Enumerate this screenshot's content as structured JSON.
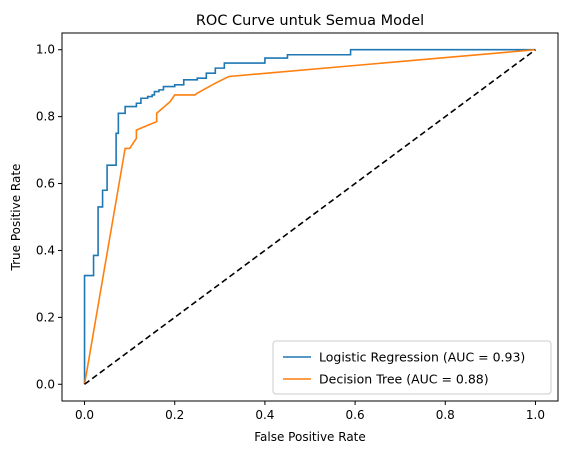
{
  "chart_data": {
    "type": "line",
    "title": "ROC Curve untuk Semua Model",
    "xlabel": "False Positive Rate",
    "ylabel": "True Positive Rate",
    "xlim": [
      -0.05,
      1.05
    ],
    "ylim": [
      -0.05,
      1.05
    ],
    "xticks": [
      "0.0",
      "0.2",
      "0.4",
      "0.6",
      "0.8",
      "1.0"
    ],
    "yticks": [
      "0.0",
      "0.2",
      "0.4",
      "0.6",
      "0.8",
      "1.0"
    ],
    "grid": false,
    "legend_position": "lower-right",
    "series": [
      {
        "name": "Logistic Regression (AUC = 0.93)",
        "color": "#1f77b4",
        "step": true,
        "x": [
          0.0,
          0.0,
          0.02,
          0.02,
          0.03,
          0.03,
          0.04,
          0.04,
          0.05,
          0.05,
          0.07,
          0.07,
          0.075,
          0.075,
          0.09,
          0.09,
          0.115,
          0.115,
          0.125,
          0.125,
          0.14,
          0.14,
          0.15,
          0.15,
          0.155,
          0.155,
          0.165,
          0.165,
          0.175,
          0.175,
          0.2,
          0.2,
          0.22,
          0.22,
          0.25,
          0.25,
          0.27,
          0.27,
          0.29,
          0.29,
          0.31,
          0.31,
          0.4,
          0.4,
          0.45,
          0.45,
          0.59,
          0.59,
          1.0
        ],
        "y": [
          0.0,
          0.325,
          0.325,
          0.385,
          0.385,
          0.53,
          0.53,
          0.58,
          0.58,
          0.655,
          0.655,
          0.75,
          0.75,
          0.81,
          0.81,
          0.83,
          0.83,
          0.84,
          0.84,
          0.855,
          0.855,
          0.86,
          0.86,
          0.865,
          0.865,
          0.875,
          0.875,
          0.88,
          0.88,
          0.89,
          0.89,
          0.895,
          0.895,
          0.91,
          0.91,
          0.915,
          0.915,
          0.93,
          0.93,
          0.945,
          0.945,
          0.96,
          0.96,
          0.975,
          0.975,
          0.985,
          0.985,
          1.0,
          1.0
        ]
      },
      {
        "name": "Decision Tree (AUC = 0.88)",
        "color": "#ff7f0e",
        "step": false,
        "x": [
          0.0,
          0.09,
          0.1,
          0.115,
          0.115,
          0.16,
          0.16,
          0.19,
          0.2,
          0.245,
          0.25,
          0.29,
          0.32,
          1.0
        ],
        "y": [
          0.0,
          0.705,
          0.705,
          0.735,
          0.76,
          0.785,
          0.81,
          0.845,
          0.865,
          0.865,
          0.87,
          0.9,
          0.92,
          1.0
        ]
      },
      {
        "name": "",
        "color": "#000000",
        "dashed": true,
        "x": [
          0.0,
          1.0
        ],
        "y": [
          0.0,
          1.0
        ]
      }
    ]
  }
}
